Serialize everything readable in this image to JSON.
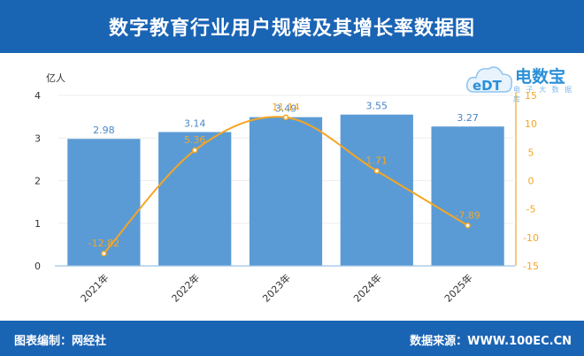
{
  "header": {
    "title": "数字教育行业用户规模及其增长率数据图"
  },
  "footer": {
    "left_text": "图表编制：网经社",
    "right_text": "数据来源：WWW.100EC.CN"
  },
  "logo": {
    "brand": "电数宝",
    "badge": "eDT",
    "sub": "电 子 大 数 据 库"
  },
  "chart_data": {
    "type": "bar",
    "categories": [
      "2021年",
      "2022年",
      "2023年",
      "2024年",
      "2025年"
    ],
    "series": [
      {
        "name": "",
        "type": "bar",
        "axis": "left",
        "values": [
          2.98,
          3.14,
          3.49,
          3.55,
          3.27
        ],
        "labels": [
          "2.98",
          "3.14",
          "3.49",
          "3.55",
          "3.27"
        ]
      },
      {
        "name": "",
        "type": "line",
        "axis": "right",
        "values": [
          -12.82,
          5.36,
          11.14,
          1.71,
          -7.89
        ],
        "labels": [
          "-12.82",
          "5.36",
          "11.14",
          "1.71",
          "-7.89"
        ]
      }
    ],
    "ylabel": "亿人",
    "ylim": [
      0,
      4
    ],
    "yticks": [
      "0",
      "1",
      "2",
      "3",
      "4"
    ],
    "y2lim": [
      -15,
      15
    ],
    "y2ticks": [
      "-15",
      "-10",
      "-5",
      "0",
      "5",
      "10",
      "15"
    ],
    "colors": {
      "bar": "#5b9bd5",
      "line": "#f5a623",
      "bar_label": "#4a86c5",
      "line_label": "#f5a623"
    }
  }
}
